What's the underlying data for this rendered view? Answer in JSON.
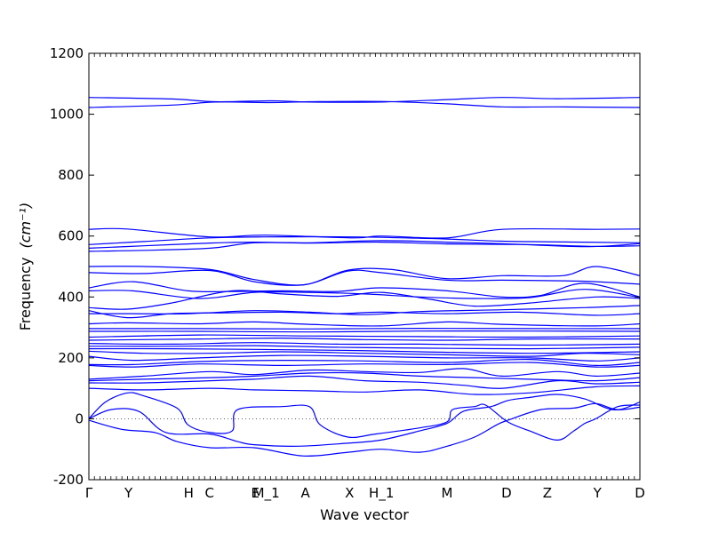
{
  "chart_data": {
    "type": "line",
    "xlabel": "Wave vector",
    "ylabel": "Frequency",
    "ylabel_unit": "(cm⁻¹)",
    "ylim": [
      -200,
      1200
    ],
    "yticks": [
      -200,
      0,
      200,
      400,
      600,
      800,
      1000,
      1200
    ],
    "xlim": [
      0,
      1
    ],
    "high_symmetry_points": [
      {
        "label": "Γ",
        "x": 0.0
      },
      {
        "label": "Y",
        "x": 0.072
      },
      {
        "label": "H",
        "x": 0.181
      },
      {
        "label": "C",
        "x": 0.219
      },
      {
        "label": "E",
        "x": 0.302
      },
      {
        "label": "M_1",
        "x": 0.322
      },
      {
        "label": "A",
        "x": 0.393
      },
      {
        "label": "X",
        "x": 0.473
      },
      {
        "label": "H_1",
        "x": 0.531
      },
      {
        "label": "M",
        "x": 0.65
      },
      {
        "label": "D",
        "x": 0.758
      },
      {
        "label": "Z",
        "x": 0.832
      },
      {
        "label": "Y",
        "x": 0.923
      },
      {
        "label": "D",
        "x": 1.0
      }
    ],
    "zero_line": true,
    "series_color": "#0000ff",
    "bands": [
      [
        [
          0,
          1055
        ],
        [
          0.15,
          1050
        ],
        [
          0.23,
          1041
        ],
        [
          0.33,
          1044
        ],
        [
          0.4,
          1040
        ],
        [
          0.53,
          1040
        ],
        [
          0.65,
          1048
        ],
        [
          0.75,
          1055
        ],
        [
          0.85,
          1051
        ],
        [
          1,
          1055
        ]
      ],
      [
        [
          0,
          1022
        ],
        [
          0.15,
          1030
        ],
        [
          0.23,
          1040
        ],
        [
          0.33,
          1038
        ],
        [
          0.4,
          1041
        ],
        [
          0.53,
          1042
        ],
        [
          0.65,
          1034
        ],
        [
          0.75,
          1024
        ],
        [
          0.85,
          1024
        ],
        [
          1,
          1022
        ]
      ],
      [
        [
          0,
          622
        ],
        [
          0.07,
          623
        ],
        [
          0.22,
          597
        ],
        [
          0.32,
          603
        ],
        [
          0.48,
          594
        ],
        [
          0.53,
          600
        ],
        [
          0.65,
          594
        ],
        [
          0.75,
          622
        ],
        [
          0.92,
          622
        ],
        [
          1,
          623
        ]
      ],
      [
        [
          0,
          572
        ],
        [
          0.1,
          582
        ],
        [
          0.22,
          594
        ],
        [
          0.32,
          597
        ],
        [
          0.48,
          597
        ],
        [
          0.65,
          590
        ],
        [
          0.75,
          583
        ],
        [
          0.9,
          580
        ],
        [
          1,
          578
        ]
      ],
      [
        [
          0,
          560
        ],
        [
          0.1,
          568
        ],
        [
          0.22,
          577
        ],
        [
          0.3,
          580
        ],
        [
          0.4,
          578
        ],
        [
          0.53,
          585
        ],
        [
          0.65,
          580
        ],
        [
          0.75,
          575
        ],
        [
          0.9,
          565
        ],
        [
          1,
          575
        ]
      ],
      [
        [
          0,
          550
        ],
        [
          0.1,
          553
        ],
        [
          0.22,
          560
        ],
        [
          0.3,
          578
        ],
        [
          0.4,
          577
        ],
        [
          0.53,
          580
        ],
        [
          0.65,
          574
        ],
        [
          0.8,
          572
        ],
        [
          0.92,
          566
        ],
        [
          1,
          568
        ]
      ],
      [
        [
          0,
          500
        ],
        [
          0.1,
          500
        ],
        [
          0.22,
          490
        ],
        [
          0.3,
          457
        ],
        [
          0.39,
          440
        ],
        [
          0.47,
          488
        ],
        [
          0.55,
          490
        ],
        [
          0.65,
          460
        ],
        [
          0.75,
          470
        ],
        [
          0.86,
          470
        ],
        [
          0.92,
          500
        ],
        [
          1,
          470
        ]
      ],
      [
        [
          0,
          480
        ],
        [
          0.1,
          477
        ],
        [
          0.22,
          487
        ],
        [
          0.3,
          450
        ],
        [
          0.39,
          440
        ],
        [
          0.47,
          485
        ],
        [
          0.53,
          480
        ],
        [
          0.65,
          455
        ],
        [
          0.75,
          455
        ],
        [
          0.86,
          453
        ],
        [
          0.92,
          450
        ],
        [
          1,
          442
        ]
      ],
      [
        [
          0,
          430
        ],
        [
          0.08,
          450
        ],
        [
          0.18,
          420
        ],
        [
          0.26,
          418
        ],
        [
          0.35,
          420
        ],
        [
          0.45,
          418
        ],
        [
          0.53,
          430
        ],
        [
          0.65,
          420
        ],
        [
          0.75,
          400
        ],
        [
          0.82,
          405
        ],
        [
          0.9,
          445
        ],
        [
          1,
          400
        ]
      ],
      [
        [
          0,
          420
        ],
        [
          0.08,
          420
        ],
        [
          0.2,
          395
        ],
        [
          0.3,
          415
        ],
        [
          0.4,
          415
        ],
        [
          0.5,
          410
        ],
        [
          0.6,
          400
        ],
        [
          0.7,
          395
        ],
        [
          0.8,
          398
        ],
        [
          0.9,
          425
        ],
        [
          1,
          398
        ]
      ],
      [
        [
          0,
          365
        ],
        [
          0.07,
          360
        ],
        [
          0.15,
          380
        ],
        [
          0.26,
          420
        ],
        [
          0.35,
          410
        ],
        [
          0.45,
          402
        ],
        [
          0.53,
          415
        ],
        [
          0.62,
          392
        ],
        [
          0.7,
          370
        ],
        [
          0.8,
          380
        ],
        [
          0.92,
          400
        ],
        [
          1,
          395
        ]
      ],
      [
        [
          0,
          355
        ],
        [
          0.07,
          332
        ],
        [
          0.15,
          345
        ],
        [
          0.25,
          348
        ],
        [
          0.35,
          350
        ],
        [
          0.45,
          345
        ],
        [
          0.53,
          350
        ],
        [
          0.65,
          345
        ],
        [
          0.78,
          350
        ],
        [
          0.92,
          340
        ],
        [
          1,
          345
        ]
      ],
      [
        [
          0,
          345
        ],
        [
          0.08,
          345
        ],
        [
          0.18,
          345
        ],
        [
          0.3,
          355
        ],
        [
          0.4,
          350
        ],
        [
          0.5,
          342
        ],
        [
          0.6,
          352
        ],
        [
          0.75,
          358
        ],
        [
          0.9,
          365
        ],
        [
          1,
          372
        ]
      ],
      [
        [
          0,
          312
        ],
        [
          0.07,
          315
        ],
        [
          0.2,
          312
        ],
        [
          0.3,
          318
        ],
        [
          0.4,
          310
        ],
        [
          0.53,
          305
        ],
        [
          0.65,
          318
        ],
        [
          0.75,
          310
        ],
        [
          0.92,
          305
        ],
        [
          1,
          312
        ]
      ],
      [
        [
          0,
          296
        ],
        [
          0.2,
          296
        ],
        [
          0.4,
          295
        ],
        [
          0.6,
          297
        ],
        [
          0.8,
          296
        ],
        [
          1,
          296
        ]
      ],
      [
        [
          0,
          287
        ],
        [
          0.2,
          287
        ],
        [
          0.4,
          285
        ],
        [
          0.6,
          288
        ],
        [
          0.8,
          288
        ],
        [
          1,
          287
        ]
      ],
      [
        [
          0,
          268
        ],
        [
          0.2,
          275
        ],
        [
          0.4,
          272
        ],
        [
          0.6,
          270
        ],
        [
          0.8,
          268
        ],
        [
          1,
          272
        ]
      ],
      [
        [
          0,
          258
        ],
        [
          0.2,
          262
        ],
        [
          0.35,
          265
        ],
        [
          0.5,
          260
        ],
        [
          0.65,
          258
        ],
        [
          0.8,
          262
        ],
        [
          1,
          262
        ]
      ],
      [
        [
          0,
          247
        ],
        [
          0.15,
          245
        ],
        [
          0.3,
          250
        ],
        [
          0.45,
          245
        ],
        [
          0.6,
          245
        ],
        [
          0.8,
          242
        ],
        [
          1,
          245
        ]
      ],
      [
        [
          0,
          238
        ],
        [
          0.15,
          238
        ],
        [
          0.3,
          240
        ],
        [
          0.45,
          235
        ],
        [
          0.6,
          232
        ],
        [
          0.8,
          230
        ],
        [
          1,
          235
        ]
      ],
      [
        [
          0,
          230
        ],
        [
          0.15,
          230
        ],
        [
          0.3,
          228
        ],
        [
          0.45,
          225
        ],
        [
          0.6,
          220
        ],
        [
          0.8,
          215
        ],
        [
          1,
          220
        ]
      ],
      [
        [
          0,
          222
        ],
        [
          0.1,
          215
        ],
        [
          0.22,
          215
        ],
        [
          0.35,
          220
        ],
        [
          0.5,
          215
        ],
        [
          0.65,
          210
        ],
        [
          0.8,
          205
        ],
        [
          0.9,
          215
        ],
        [
          1,
          210
        ]
      ],
      [
        [
          0,
          205
        ],
        [
          0.08,
          192
        ],
        [
          0.2,
          200
        ],
        [
          0.35,
          208
        ],
        [
          0.5,
          205
        ],
        [
          0.65,
          200
        ],
        [
          0.8,
          200
        ],
        [
          0.92,
          190
        ],
        [
          1,
          200
        ]
      ],
      [
        [
          0,
          178
        ],
        [
          0.08,
          178
        ],
        [
          0.2,
          188
        ],
        [
          0.35,
          192
        ],
        [
          0.5,
          190
        ],
        [
          0.65,
          185
        ],
        [
          0.8,
          195
        ],
        [
          0.92,
          175
        ],
        [
          1,
          185
        ]
      ],
      [
        [
          0,
          175
        ],
        [
          0.08,
          170
        ],
        [
          0.2,
          180
        ],
        [
          0.35,
          175
        ],
        [
          0.5,
          180
        ],
        [
          0.65,
          178
        ],
        [
          0.8,
          185
        ],
        [
          0.92,
          170
        ],
        [
          1,
          175
        ]
      ],
      [
        [
          0,
          130
        ],
        [
          0.1,
          140
        ],
        [
          0.22,
          155
        ],
        [
          0.3,
          145
        ],
        [
          0.4,
          160
        ],
        [
          0.5,
          155
        ],
        [
          0.6,
          152
        ],
        [
          0.68,
          165
        ],
        [
          0.75,
          140
        ],
        [
          0.85,
          155
        ],
        [
          0.92,
          140
        ],
        [
          1,
          150
        ]
      ],
      [
        [
          0,
          125
        ],
        [
          0.1,
          130
        ],
        [
          0.22,
          135
        ],
        [
          0.3,
          140
        ],
        [
          0.4,
          150
        ],
        [
          0.5,
          150
        ],
        [
          0.6,
          140
        ],
        [
          0.7,
          135
        ],
        [
          0.8,
          130
        ],
        [
          0.92,
          125
        ],
        [
          1,
          135
        ]
      ],
      [
        [
          0,
          118
        ],
        [
          0.1,
          118
        ],
        [
          0.22,
          125
        ],
        [
          0.3,
          130
        ],
        [
          0.4,
          140
        ],
        [
          0.5,
          125
        ],
        [
          0.6,
          120
        ],
        [
          0.68,
          110
        ],
        [
          0.75,
          100
        ],
        [
          0.85,
          125
        ],
        [
          0.92,
          115
        ],
        [
          1,
          120
        ]
      ],
      [
        [
          0,
          100
        ],
        [
          0.1,
          95
        ],
        [
          0.22,
          100
        ],
        [
          0.3,
          95
        ],
        [
          0.4,
          92
        ],
        [
          0.5,
          88
        ],
        [
          0.6,
          95
        ],
        [
          0.7,
          80
        ],
        [
          0.8,
          85
        ],
        [
          0.92,
          105
        ],
        [
          1,
          108
        ]
      ],
      [
        [
          0,
          0
        ],
        [
          0.03,
          55
        ],
        [
          0.07,
          85
        ],
        [
          0.1,
          75
        ],
        [
          0.16,
          35
        ],
        [
          0.18,
          -20
        ],
        [
          0.22,
          -45
        ],
        [
          0.26,
          -40
        ],
        [
          0.27,
          30
        ],
        [
          0.35,
          40
        ],
        [
          0.4,
          40
        ],
        [
          0.42,
          -20
        ],
        [
          0.47,
          -60
        ],
        [
          0.52,
          -50
        ],
        [
          0.6,
          -30
        ],
        [
          0.65,
          -10
        ],
        [
          0.66,
          30
        ],
        [
          0.7,
          40
        ],
        [
          0.72,
          45
        ],
        [
          0.76,
          -10
        ],
        [
          0.8,
          -40
        ],
        [
          0.85,
          -70
        ],
        [
          0.88,
          -40
        ],
        [
          0.9,
          -15
        ],
        [
          0.92,
          0
        ],
        [
          0.96,
          40
        ],
        [
          1,
          45
        ]
      ],
      [
        [
          0,
          0
        ],
        [
          0.04,
          30
        ],
        [
          0.09,
          25
        ],
        [
          0.14,
          -45
        ],
        [
          0.22,
          -50
        ],
        [
          0.27,
          -75
        ],
        [
          0.3,
          -85
        ],
        [
          0.38,
          -90
        ],
        [
          0.47,
          -80
        ],
        [
          0.53,
          -70
        ],
        [
          0.6,
          -40
        ],
        [
          0.65,
          -15
        ],
        [
          0.68,
          25
        ],
        [
          0.73,
          40
        ],
        [
          0.76,
          60
        ],
        [
          0.8,
          70
        ],
        [
          0.85,
          80
        ],
        [
          0.9,
          65
        ],
        [
          0.95,
          30
        ],
        [
          1,
          38
        ]
      ],
      [
        [
          0,
          -5
        ],
        [
          0.06,
          -35
        ],
        [
          0.12,
          -45
        ],
        [
          0.16,
          -75
        ],
        [
          0.22,
          -95
        ],
        [
          0.3,
          -95
        ],
        [
          0.39,
          -122
        ],
        [
          0.47,
          -110
        ],
        [
          0.53,
          -100
        ],
        [
          0.6,
          -110
        ],
        [
          0.65,
          -90
        ],
        [
          0.7,
          -60
        ],
        [
          0.74,
          -20
        ],
        [
          0.76,
          -5
        ],
        [
          0.82,
          30
        ],
        [
          0.88,
          35
        ],
        [
          0.92,
          50
        ],
        [
          0.96,
          30
        ],
        [
          1,
          55
        ]
      ]
    ]
  }
}
